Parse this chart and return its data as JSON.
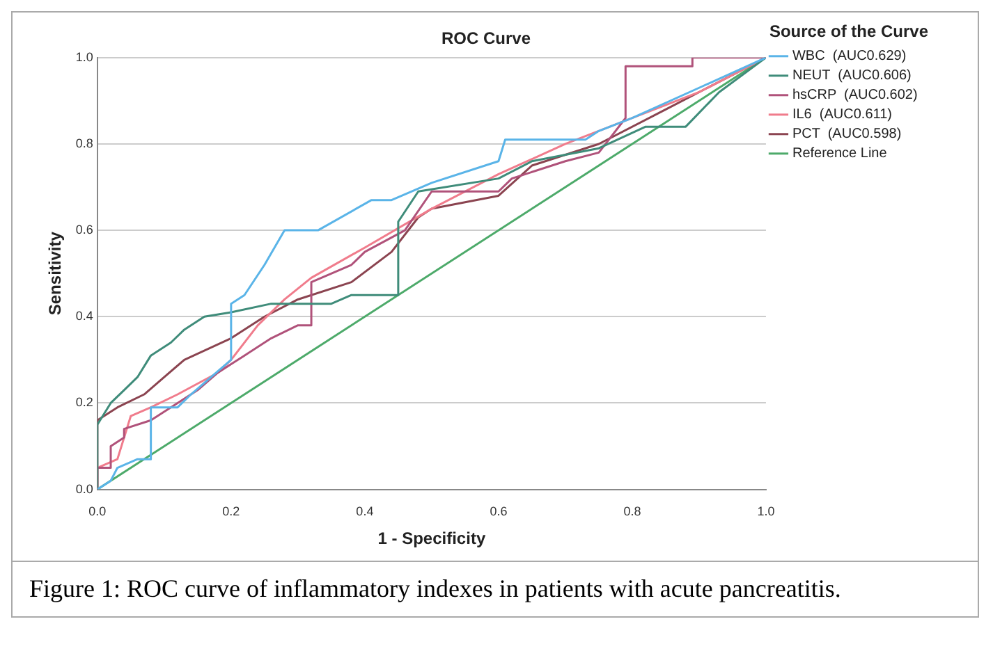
{
  "chart_data": {
    "type": "line",
    "title": "ROC Curve",
    "xlabel": "1 - Specificity",
    "ylabel": "Sensitivity",
    "legend_title": "Source of the Curve",
    "legend": "right",
    "grid": "y",
    "marker": "none",
    "line_style": "solid",
    "xlim": [
      0,
      1
    ],
    "ylim": [
      0,
      1
    ],
    "xticks": [
      {
        "value": 0,
        "label": "0.0"
      },
      0.2,
      0.4,
      0.6,
      0.8,
      {
        "value": 1,
        "label": "1.0"
      }
    ],
    "yticks": [
      {
        "value": 0,
        "label": "0.0"
      },
      0.2,
      0.4,
      0.6,
      0.8,
      {
        "value": 1,
        "label": "1.0"
      }
    ],
    "annotations": [
      "Figure 1: ROC curve of inflammatory indexes in patients with acute pancreatitis."
    ],
    "series": [
      {
        "name": "WBC  (AUC0.629)",
        "color": "#5ab4e8",
        "x": [
          0,
          0.02,
          0.03,
          0.06,
          0.08,
          0.08,
          0.12,
          0.14,
          0.17,
          0.2,
          0.2,
          0.22,
          0.25,
          0.28,
          0.33,
          0.41,
          0.44,
          0.5,
          0.6,
          0.61,
          0.73,
          0.75,
          0.8,
          0.9,
          1
        ],
        "values": [
          0,
          0.02,
          0.05,
          0.07,
          0.07,
          0.19,
          0.19,
          0.22,
          0.26,
          0.3,
          0.43,
          0.45,
          0.52,
          0.6,
          0.6,
          0.67,
          0.67,
          0.71,
          0.76,
          0.81,
          0.81,
          0.83,
          0.86,
          0.93,
          1
        ]
      },
      {
        "name": "NEUT  (AUC0.606)",
        "color": "#3f8c7a",
        "x": [
          0,
          0,
          0.02,
          0.04,
          0.06,
          0.08,
          0.11,
          0.13,
          0.16,
          0.2,
          0.26,
          0.35,
          0.38,
          0.45,
          0.45,
          0.48,
          0.6,
          0.65,
          0.75,
          0.82,
          0.88,
          0.93,
          1
        ],
        "values": [
          0,
          0.15,
          0.2,
          0.23,
          0.26,
          0.31,
          0.34,
          0.37,
          0.4,
          0.41,
          0.43,
          0.43,
          0.45,
          0.45,
          0.62,
          0.69,
          0.72,
          0.76,
          0.79,
          0.84,
          0.84,
          0.92,
          1
        ]
      },
      {
        "name": "hsCRP  (AUC0.602)",
        "color": "#b0527a",
        "x": [
          0,
          0,
          0.02,
          0.02,
          0.04,
          0.04,
          0.08,
          0.12,
          0.15,
          0.18,
          0.2,
          0.22,
          0.26,
          0.3,
          0.32,
          0.32,
          0.38,
          0.4,
          0.46,
          0.5,
          0.6,
          0.62,
          0.7,
          0.75,
          0.79,
          0.79,
          0.89,
          0.89,
          1
        ],
        "values": [
          0,
          0.05,
          0.05,
          0.1,
          0.12,
          0.14,
          0.16,
          0.2,
          0.23,
          0.27,
          0.29,
          0.31,
          0.35,
          0.38,
          0.38,
          0.48,
          0.52,
          0.55,
          0.6,
          0.69,
          0.69,
          0.72,
          0.76,
          0.78,
          0.86,
          0.98,
          0.98,
          1,
          1
        ]
      },
      {
        "name": "IL6  (AUC0.611)",
        "color": "#f07c8c",
        "x": [
          0,
          0,
          0.03,
          0.05,
          0.08,
          0.12,
          0.18,
          0.2,
          0.24,
          0.28,
          0.32,
          0.4,
          0.5,
          0.6,
          0.7,
          0.8,
          0.9,
          1
        ],
        "values": [
          0,
          0.05,
          0.07,
          0.17,
          0.19,
          0.22,
          0.27,
          0.3,
          0.38,
          0.44,
          0.49,
          0.56,
          0.65,
          0.73,
          0.8,
          0.86,
          0.92,
          1
        ]
      },
      {
        "name": "PCT  (AUC0.598)",
        "color": "#8b4450",
        "x": [
          0,
          0,
          0.03,
          0.07,
          0.1,
          0.13,
          0.2,
          0.25,
          0.3,
          0.38,
          0.44,
          0.48,
          0.5,
          0.6,
          0.65,
          0.75,
          0.85,
          1
        ],
        "values": [
          0,
          0.16,
          0.19,
          0.22,
          0.26,
          0.3,
          0.35,
          0.4,
          0.44,
          0.48,
          0.55,
          0.63,
          0.65,
          0.68,
          0.75,
          0.8,
          0.88,
          1
        ]
      },
      {
        "name": "Reference Line",
        "color": "#4daa6a",
        "x": [
          0,
          1
        ],
        "values": [
          0,
          1
        ]
      }
    ]
  }
}
